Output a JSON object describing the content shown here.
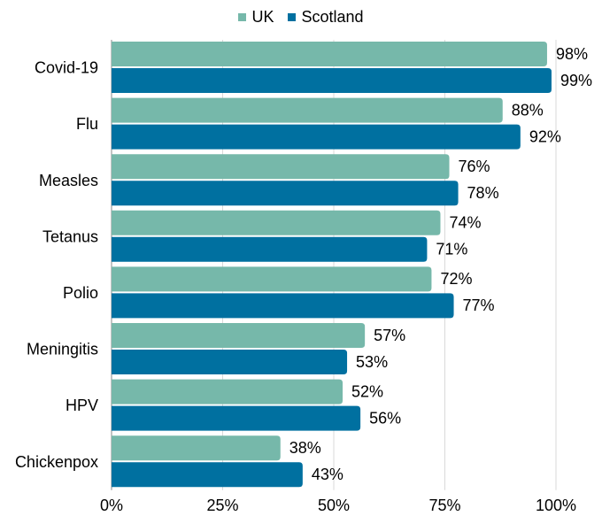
{
  "chart_data": {
    "type": "bar",
    "orientation": "horizontal",
    "title": "",
    "xlabel": "",
    "ylabel": "",
    "categories": [
      "Covid-19",
      "Flu",
      "Measles",
      "Tetanus",
      "Polio",
      "Meningitis",
      "HPV",
      "Chickenpox"
    ],
    "series": [
      {
        "name": "UK",
        "color": "#76B8AA",
        "values": [
          98,
          88,
          76,
          74,
          72,
          57,
          52,
          38
        ],
        "labels": [
          "98%",
          "88%",
          "76%",
          "74%",
          "72%",
          "57%",
          "52%",
          "38%"
        ]
      },
      {
        "name": "Scotland",
        "color": "#0070A0",
        "values": [
          99,
          92,
          78,
          71,
          77,
          53,
          56,
          43
        ],
        "labels": [
          "99%",
          "92%",
          "78%",
          "71%",
          "77%",
          "53%",
          "56%",
          "43%"
        ]
      }
    ],
    "xlim": [
      0,
      100
    ],
    "xticks": [
      0,
      25,
      50,
      75,
      100
    ],
    "xtick_labels": [
      "0%",
      "25%",
      "50%",
      "75%",
      "100%"
    ],
    "grid": true,
    "legend_position": "top-center"
  }
}
